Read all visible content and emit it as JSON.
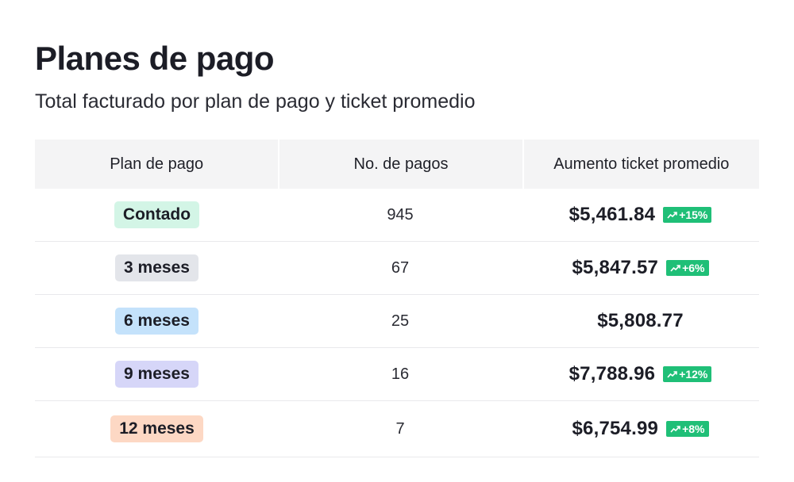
{
  "header": {
    "title": "Planes de pago",
    "subtitle": "Total facturado por plan de pago y ticket promedio"
  },
  "table": {
    "columns": [
      "Plan de pago",
      "No. de pagos",
      "Aumento ticket promedio"
    ],
    "rows": [
      {
        "plan": "Contado",
        "payments": "945",
        "amount": "$5,461.84",
        "trend": "+15%",
        "badge_color": "#d3f5e6"
      },
      {
        "plan": "3 meses",
        "payments": "67",
        "amount": "$5,847.57",
        "trend": "+6%",
        "badge_color": "#e3e5ea"
      },
      {
        "plan": "6 meses",
        "payments": "25",
        "amount": "$5,808.77",
        "trend": "",
        "badge_color": "#c4e2fb"
      },
      {
        "plan": "9 meses",
        "payments": "16",
        "amount": "$7,788.96",
        "trend": "+12%",
        "badge_color": "#d6d6f8"
      },
      {
        "plan": "12 meses",
        "payments": "7",
        "amount": "$6,754.99",
        "trend": "+8%",
        "badge_color": "#fdd8c4"
      }
    ],
    "trend_icon": "trending-up-icon",
    "trend_color": "#1fbf77"
  }
}
